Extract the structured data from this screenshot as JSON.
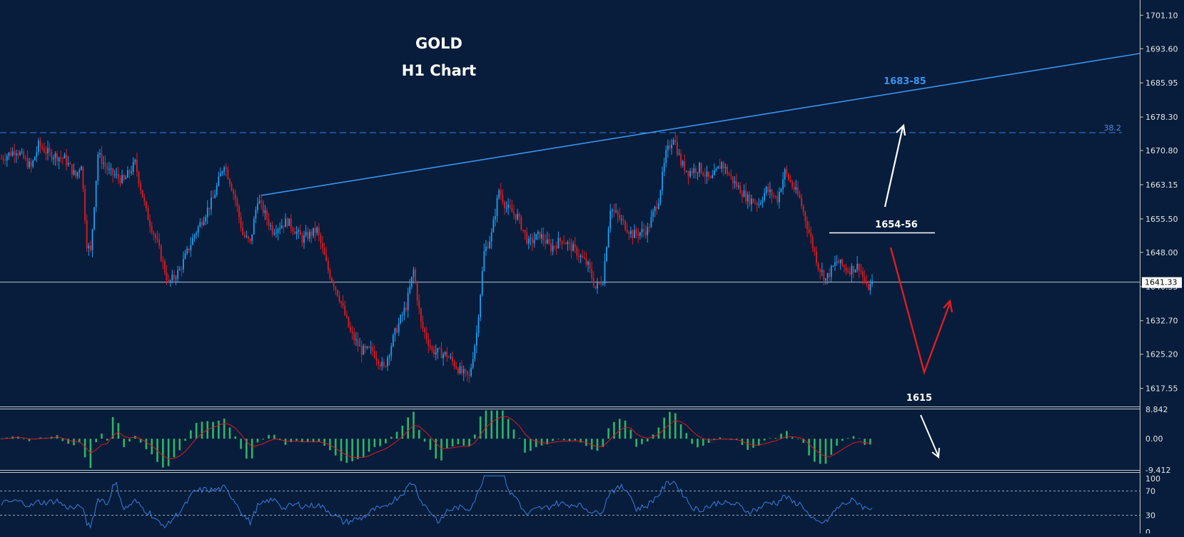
{
  "colors": {
    "background": "#071d3b",
    "bull": "#1e9ff2",
    "bear": "#e01c22",
    "trendline": "#3a94f0",
    "grid_text": "#e6e6e6",
    "macd_hist": "#2fb569",
    "macd_signal": "#e01c22",
    "rsi_line": "#3a7de0",
    "annotation": "#ffffff"
  },
  "chart_data": [
    {
      "type": "candlestick",
      "title": "GOLD",
      "subtitle": "H1 Chart",
      "ylim": [
        1613.5,
        1704.5
      ],
      "y_ticks": [
        "1701.10",
        "1693.60",
        "1685.95",
        "1678.30",
        "1670.80",
        "1663.15",
        "1655.50",
        "1648.00",
        "1640.35",
        "1632.70",
        "1625.20",
        "1617.55"
      ],
      "current_price": "1641.33",
      "fib_level": {
        "label": "38.2",
        "value": 1674.8
      },
      "levels": {
        "resistance_1": "1683-85",
        "resistance_2": "1654-56",
        "support": "1615"
      },
      "price_path": [
        [
          0,
          1669
        ],
        [
          8,
          1671
        ],
        [
          16,
          1667
        ],
        [
          20,
          1672
        ],
        [
          26,
          1670
        ],
        [
          34,
          1669
        ],
        [
          40,
          1665
        ],
        [
          43,
          1668
        ],
        [
          46,
          1650
        ],
        [
          48,
          1648
        ],
        [
          52,
          1670
        ],
        [
          58,
          1666
        ],
        [
          66,
          1664
        ],
        [
          72,
          1668
        ],
        [
          78,
          1657
        ],
        [
          84,
          1650
        ],
        [
          90,
          1641
        ],
        [
          96,
          1644
        ],
        [
          104,
          1652
        ],
        [
          114,
          1660
        ],
        [
          120,
          1668
        ],
        [
          126,
          1660
        ],
        [
          130,
          1652
        ],
        [
          134,
          1650
        ],
        [
          138,
          1660
        ],
        [
          146,
          1653
        ],
        [
          154,
          1655
        ],
        [
          162,
          1651
        ],
        [
          170,
          1653
        ],
        [
          176,
          1644
        ],
        [
          182,
          1638
        ],
        [
          188,
          1630
        ],
        [
          194,
          1626
        ],
        [
          200,
          1626
        ],
        [
          206,
          1622
        ],
        [
          212,
          1630
        ],
        [
          218,
          1636
        ],
        [
          222,
          1644
        ],
        [
          226,
          1632
        ],
        [
          232,
          1626
        ],
        [
          240,
          1625
        ],
        [
          248,
          1621
        ],
        [
          252,
          1620
        ],
        [
          256,
          1630
        ],
        [
          260,
          1648
        ],
        [
          264,
          1652
        ],
        [
          268,
          1662
        ],
        [
          272,
          1658
        ],
        [
          278,
          1656
        ],
        [
          284,
          1650
        ],
        [
          290,
          1652
        ],
        [
          296,
          1649
        ],
        [
          302,
          1651
        ],
        [
          310,
          1648
        ],
        [
          316,
          1645
        ],
        [
          320,
          1640
        ],
        [
          324,
          1642
        ],
        [
          328,
          1658
        ],
        [
          334,
          1655
        ],
        [
          340,
          1652
        ],
        [
          348,
          1653
        ],
        [
          354,
          1660
        ],
        [
          358,
          1670
        ],
        [
          362,
          1674
        ],
        [
          366,
          1668
        ],
        [
          370,
          1666
        ],
        [
          376,
          1667
        ],
        [
          382,
          1664
        ],
        [
          388,
          1668
        ],
        [
          394,
          1664
        ],
        [
          402,
          1660
        ],
        [
          408,
          1659
        ],
        [
          412,
          1662
        ],
        [
          418,
          1660
        ],
        [
          422,
          1666
        ],
        [
          430,
          1660
        ],
        [
          434,
          1654
        ],
        [
          440,
          1645
        ],
        [
          444,
          1642
        ],
        [
          450,
          1646
        ],
        [
          456,
          1644
        ],
        [
          462,
          1645
        ],
        [
          466,
          1640
        ],
        [
          470,
          1641
        ]
      ],
      "candle_count": 470
    },
    {
      "type": "histogram",
      "name": "MACD",
      "y_ticks": [
        "8.842",
        "0.00",
        "-9.412"
      ],
      "ylim": [
        -9.412,
        8.842
      ]
    },
    {
      "type": "line",
      "name": "RSI",
      "y_ticks": [
        "100",
        "70",
        "30",
        "0"
      ],
      "ylim": [
        0,
        100
      ],
      "levels": [
        70,
        30
      ]
    }
  ]
}
